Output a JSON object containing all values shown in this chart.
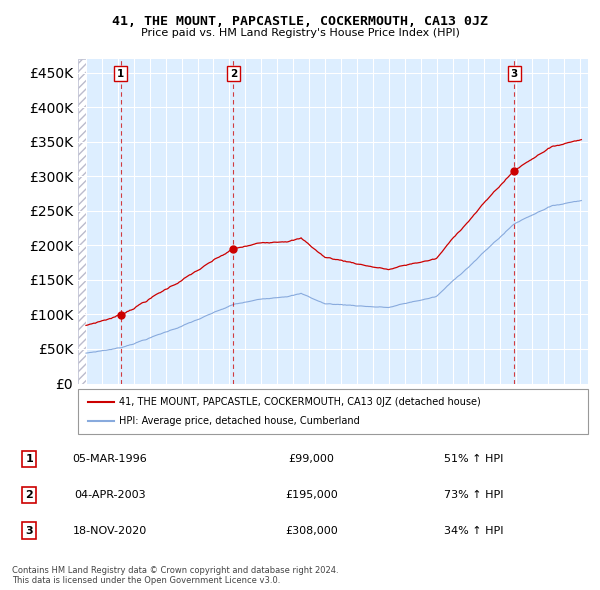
{
  "title": "41, THE MOUNT, PAPCASTLE, COCKERMOUTH, CA13 0JZ",
  "subtitle": "Price paid vs. HM Land Registry's House Price Index (HPI)",
  "legend_property": "41, THE MOUNT, PAPCASTLE, COCKERMOUTH, CA13 0JZ (detached house)",
  "legend_hpi": "HPI: Average price, detached house, Cumberland",
  "sales": [
    {
      "num": 1,
      "date": "05-MAR-1996",
      "year": 1996.17,
      "price": 99000,
      "pct": "51% ↑ HPI"
    },
    {
      "num": 2,
      "date": "04-APR-2003",
      "year": 2003.25,
      "price": 195000,
      "pct": "73% ↑ HPI"
    },
    {
      "num": 3,
      "date": "18-NOV-2020",
      "year": 2020.88,
      "price": 308000,
      "pct": "34% ↑ HPI"
    }
  ],
  "footnote1": "Contains HM Land Registry data © Crown copyright and database right 2024.",
  "footnote2": "This data is licensed under the Open Government Licence v3.0.",
  "xlim_start": 1993.5,
  "xlim_end": 2025.5,
  "ylim_min": 0,
  "ylim_max": 470000,
  "hatch_end": 1994.0,
  "property_color": "#cc0000",
  "hpi_color": "#88aadd",
  "sale_marker_color": "#cc0000",
  "dashed_line_color": "#cc0000",
  "background_color": "#ddeeff",
  "yticks": [
    0,
    50000,
    100000,
    150000,
    200000,
    250000,
    300000,
    350000,
    400000,
    450000
  ]
}
